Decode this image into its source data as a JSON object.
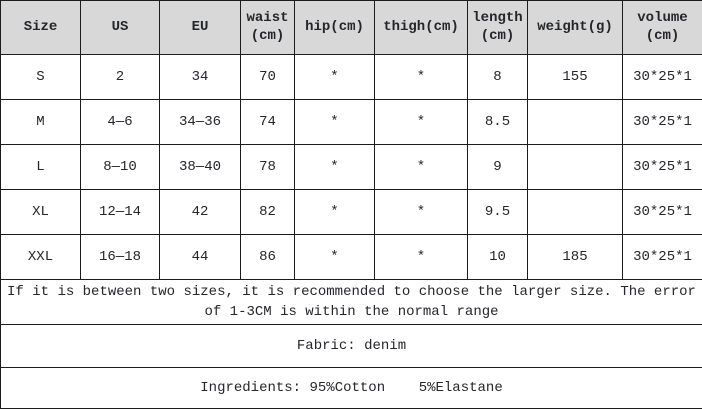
{
  "colors": {
    "header_background": "#d8d8d8",
    "border": "#1c1c1c",
    "text": "#24262b",
    "row_background": "#ffffff"
  },
  "table": {
    "columns": [
      {
        "label": "Size"
      },
      {
        "label": "US"
      },
      {
        "label": "EU"
      },
      {
        "label": "waist\n(cm)"
      },
      {
        "label": "hip(cm)"
      },
      {
        "label": "thigh(cm)"
      },
      {
        "label": "length\n(cm)"
      },
      {
        "label": "weight(g)"
      },
      {
        "label": "volume\n(cm)"
      }
    ],
    "rows": [
      {
        "cells": [
          "S",
          "2",
          "34",
          "70",
          "*",
          "*",
          "8",
          "155",
          "30*25*1"
        ]
      },
      {
        "cells": [
          "M",
          "4—6",
          "34—36",
          "74",
          "*",
          "*",
          "8.5",
          "",
          "30*25*1"
        ]
      },
      {
        "cells": [
          "L",
          "8—10",
          "38—40",
          "78",
          "*",
          "*",
          "9",
          "",
          "30*25*1"
        ]
      },
      {
        "cells": [
          "XL",
          "12—14",
          "42",
          "82",
          "*",
          "*",
          "9.5",
          "",
          "30*25*1"
        ]
      },
      {
        "cells": [
          "XXL",
          "16—18",
          "44",
          "86",
          "*",
          "*",
          "10",
          "185",
          "30*25*1"
        ]
      }
    ],
    "notes": {
      "sizing_advice": "If it is between two sizes, it is recommended to choose the larger size. The error of 1-3CM is within the normal range",
      "fabric": "Fabric: denim",
      "ingredients": "Ingredients: 95%Cotton    5%Elastane"
    }
  }
}
